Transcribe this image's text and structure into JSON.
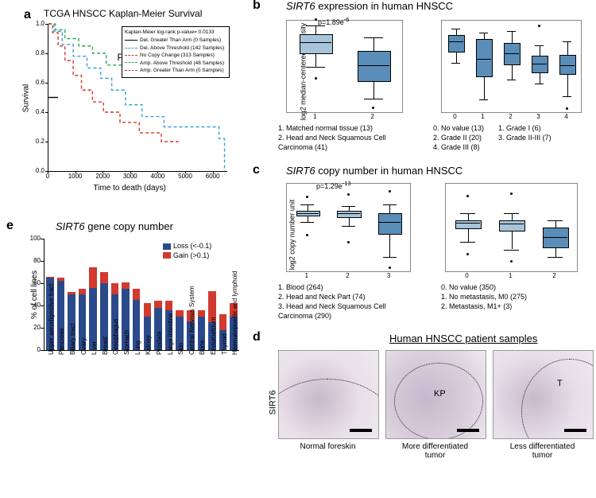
{
  "colors": {
    "blue_dark": "#2b4a8c",
    "blue_mid": "#5a8db8",
    "blue_light": "#a7c4da",
    "red": "#d13a2e",
    "orange": "#e8a23f",
    "green": "#2fa84f",
    "skyblue": "#3b9fd6",
    "magenta": "#c43f7a",
    "grey_axis": "#888888",
    "tissue_bg1": "#e9e0e8",
    "tissue_bg2": "#d9cddb",
    "tissue_bg3": "#e6dee8"
  },
  "panel_a": {
    "letter": "a",
    "title": "TCGA HNSCC Kaplan-Meier Survival",
    "pvalue": "P=0.0133",
    "xlabel": "Time to death (days)",
    "ylabel": "Survival",
    "xlim": [
      0,
      6500
    ],
    "xtick_step": 1000,
    "ylim": [
      0,
      1.0
    ],
    "ytick_step": 0.2,
    "legend_title": "Kaplan-Meier log-rank p-value= 0.0133",
    "legend": [
      {
        "style": "solid",
        "color": "#000000",
        "label": "Del. Greater Than Arm (0 Samples)"
      },
      {
        "style": "dashed",
        "color": "#3b9fd6",
        "label": "Del. Above Threshold (142 Samples)"
      },
      {
        "style": "dashed",
        "color": "#d13a2e",
        "label": "No Copy Change (313 Samples)"
      },
      {
        "style": "dashed",
        "color": "#2fa84f",
        "label": "Amp. Above Threshold (48 Samples)"
      },
      {
        "style": "dashed",
        "color": "#c43f7a",
        "label": "Amp. Greater Than Arm (0 Samples)"
      }
    ],
    "km_curves": {
      "skyblue": [
        [
          0,
          1.0
        ],
        [
          200,
          0.95
        ],
        [
          500,
          0.86
        ],
        [
          900,
          0.78
        ],
        [
          1400,
          0.7
        ],
        [
          1900,
          0.63
        ],
        [
          2300,
          0.55
        ],
        [
          2800,
          0.45
        ],
        [
          3400,
          0.37
        ],
        [
          4200,
          0.3
        ],
        [
          5000,
          0.3
        ],
        [
          6200,
          0.22
        ],
        [
          6400,
          0.0
        ]
      ],
      "red": [
        [
          0,
          1.0
        ],
        [
          150,
          0.94
        ],
        [
          350,
          0.85
        ],
        [
          600,
          0.75
        ],
        [
          900,
          0.65
        ],
        [
          1200,
          0.55
        ],
        [
          1600,
          0.47
        ],
        [
          2000,
          0.4
        ],
        [
          2600,
          0.33
        ],
        [
          3300,
          0.26
        ],
        [
          4100,
          0.2
        ],
        [
          4800,
          0.2
        ]
      ],
      "green": [
        [
          0,
          1.0
        ],
        [
          250,
          0.96
        ],
        [
          600,
          0.9
        ],
        [
          1100,
          0.85
        ],
        [
          1600,
          0.8
        ],
        [
          2100,
          0.72
        ],
        [
          2600,
          0.72
        ],
        [
          3300,
          0.72
        ]
      ],
      "black": [
        [
          0,
          0.5
        ],
        [
          350,
          0.5
        ]
      ]
    }
  },
  "panel_b": {
    "letter": "b",
    "title": "SIRT6 expression in human HNSCC",
    "title_italic_part": "SIRT6",
    "ylabel": "log2 median-centered intensity",
    "left": {
      "pvalue": "p=1.89e⁻⁶",
      "xticks": [
        "1",
        "2"
      ],
      "ylim": [
        -0.5,
        2.5
      ],
      "boxes": [
        {
          "x": 1,
          "q1": 1.45,
          "med": 1.8,
          "q3": 2.05,
          "lo": 1.0,
          "hi": 2.35,
          "color": "#a7c4da",
          "outliers": [
            2.55,
            0.6
          ]
        },
        {
          "x": 2,
          "q1": 0.55,
          "med": 1.05,
          "q3": 1.5,
          "lo": -0.05,
          "hi": 1.95,
          "color": "#5a8db8",
          "outliers": [
            -0.35
          ]
        }
      ],
      "caption": [
        "1.    Matched normal tissue (13)",
        "2.    Head and Neck Squamous Cell",
        "       Carcinoma (41)"
      ]
    },
    "right": {
      "xticks": [
        "0",
        "1",
        "2",
        "3",
        "4"
      ],
      "ylim": [
        -1.0,
        2.5
      ],
      "boxes": [
        {
          "x": 0,
          "q1": 1.35,
          "med": 1.7,
          "q3": 1.95,
          "lo": 0.9,
          "hi": 2.2,
          "color": "#5a8db8",
          "outliers": []
        },
        {
          "x": 1,
          "q1": 0.4,
          "med": 1.05,
          "q3": 1.8,
          "lo": -0.5,
          "hi": 2.05,
          "color": "#5a8db8",
          "outliers": []
        },
        {
          "x": 2,
          "q1": 0.85,
          "med": 1.25,
          "q3": 1.65,
          "lo": 0.25,
          "hi": 2.1,
          "color": "#5a8db8",
          "outliers": []
        },
        {
          "x": 3,
          "q1": 0.55,
          "med": 0.85,
          "q3": 1.15,
          "lo": 0.1,
          "hi": 1.55,
          "color": "#5a8db8",
          "outliers": [
            2.3
          ]
        },
        {
          "x": 4,
          "q1": 0.5,
          "med": 0.8,
          "q3": 1.2,
          "lo": -0.4,
          "hi": 1.7,
          "color": "#5a8db8",
          "outliers": [
            -0.85
          ]
        }
      ],
      "caption_cols": [
        [
          "0. No value (13)",
          "2. Grade II (20)",
          "4. Grade III (8)"
        ],
        [
          "1. Grade I (6)",
          "3. Grade II-III (7)"
        ]
      ]
    }
  },
  "panel_c": {
    "letter": "c",
    "title": "SIRT6 copy number in human HNSCC",
    "title_italic_part": "SIRT6",
    "ylabel": "log2 copy number unit",
    "left": {
      "pvalue": "p=1.29e⁻¹³",
      "xticks": [
        "1",
        "2",
        "3"
      ],
      "ylim": [
        -0.8,
        0.4
      ],
      "boxes": [
        {
          "x": 1,
          "q1": -0.03,
          "med": 0.0,
          "q3": 0.03,
          "lo": -0.12,
          "hi": 0.12,
          "color": "#a7c4da",
          "outliers": [
            0.22,
            -0.3
          ]
        },
        {
          "x": 2,
          "q1": -0.05,
          "med": 0.0,
          "q3": 0.03,
          "lo": -0.18,
          "hi": 0.1,
          "color": "#a7c4da",
          "outliers": [
            0.25,
            -0.4
          ]
        },
        {
          "x": 3,
          "q1": -0.28,
          "med": -0.12,
          "q3": 0.0,
          "lo": -0.6,
          "hi": 0.12,
          "color": "#5a8db8",
          "outliers": [
            -0.75,
            0.3
          ]
        }
      ],
      "caption": [
        "1.    Blood (264)",
        "2.    Head and Neck Part (74)",
        "3.    Head and Neck Squamous Cell",
        "       Carcinoma (290)"
      ]
    },
    "right": {
      "xticks": [
        "0",
        "1",
        "2"
      ],
      "ylim": [
        -1.0,
        0.8
      ],
      "boxes": [
        {
          "x": 0,
          "q1": -0.1,
          "med": 0.0,
          "q3": 0.05,
          "lo": -0.4,
          "hi": 0.2,
          "color": "#a7c4da",
          "outliers": [
            0.55,
            -0.65
          ]
        },
        {
          "x": 1,
          "q1": -0.15,
          "med": -0.02,
          "q3": 0.05,
          "lo": -0.55,
          "hi": 0.2,
          "color": "#a7c4da",
          "outliers": [
            0.6,
            -0.8
          ]
        },
        {
          "x": 2,
          "q1": -0.5,
          "med": -0.3,
          "q3": -0.1,
          "lo": -0.7,
          "hi": 0.05,
          "color": "#5a8db8",
          "outliers": []
        }
      ],
      "caption_cols": [
        [
          "0. No value (350)",
          "1. No metastasis, M0 (275)",
          "2. Metastasis, M1+ (3)"
        ]
      ]
    }
  },
  "panel_d": {
    "letter": "d",
    "title": "Human HNSCC patient samples",
    "ylabel": "SIRT6",
    "images": [
      {
        "caption": "Normal foreskin",
        "annot": ""
      },
      {
        "caption": "More differentiated\ntumor",
        "annot": "KP"
      },
      {
        "caption": "Less differentiated\ntumor",
        "annot": "T"
      }
    ]
  },
  "panel_e": {
    "letter": "e",
    "title": "SIRT6 gene copy number",
    "title_italic_part": "SIRT6",
    "ylabel": "% of cell lines",
    "ylim": [
      0,
      100
    ],
    "ytick_step": 20,
    "legend": [
      {
        "color": "#2b4a8c",
        "label": "Loss (<-0.1)"
      },
      {
        "color": "#d13a2e",
        "label": "Gain (>0.1)"
      }
    ],
    "categories": [
      "Upper aerodigestive tract",
      "Pancreas",
      "Biliary tract",
      "Ovary",
      "Liver",
      "Breast",
      "Oesophagus",
      "Stomach",
      "Lung",
      "Kidney",
      "Prostate",
      "Large intestine",
      "Skin",
      "Central Nervous System",
      "Bone",
      "Endometrium",
      "Thyroid",
      "Haematopoeitic and lymphoid"
    ],
    "loss": [
      65,
      62,
      50,
      50,
      56,
      60,
      50,
      55,
      45,
      30,
      38,
      36,
      30,
      26,
      30,
      25,
      18,
      30
    ],
    "gain": [
      1,
      3,
      2,
      5,
      18,
      10,
      10,
      6,
      10,
      12,
      6,
      8,
      6,
      10,
      6,
      28,
      14,
      12
    ],
    "bar_width": 0.7
  }
}
